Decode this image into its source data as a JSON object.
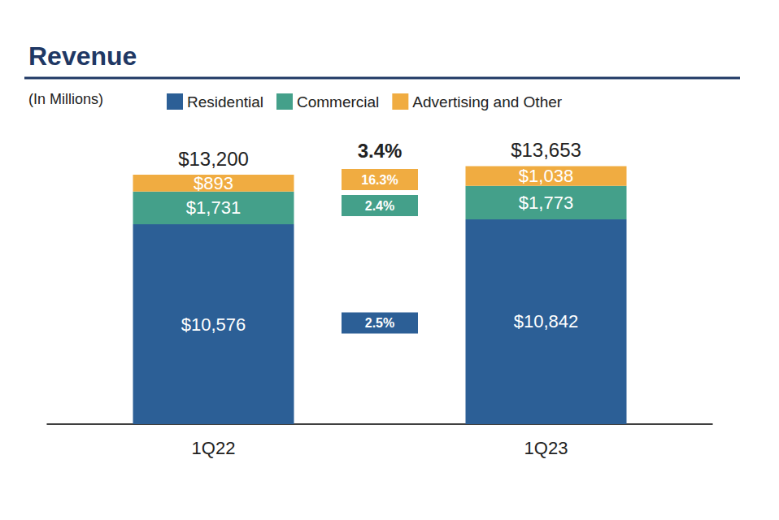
{
  "chart_data": {
    "type": "bar",
    "title": "Revenue",
    "subtitle": "(In Millions)",
    "categories": [
      "1Q22",
      "1Q23"
    ],
    "stacked": true,
    "data_labels": true,
    "tick_labels": "x",
    "legend": "top",
    "ylim": [
      0,
      16000
    ],
    "series": [
      {
        "name": "Residential",
        "color": "#2c5f96",
        "values": [
          10576,
          10842
        ],
        "value_labels": [
          "$10,576",
          "$10,842"
        ],
        "growth": 2.5,
        "growth_label": "2.5%"
      },
      {
        "name": "Commercial",
        "color": "#44a08a",
        "values": [
          1731,
          1773
        ],
        "value_labels": [
          "$1,731",
          "$1,773"
        ],
        "growth": 2.4,
        "growth_label": "2.4%"
      },
      {
        "name": "Advertising and Other",
        "color": "#f0ac41",
        "values": [
          893,
          1038
        ],
        "value_labels": [
          "$893",
          "$1,038"
        ],
        "growth": 16.3,
        "growth_label": "16.3%"
      }
    ],
    "totals": [
      13200,
      13653
    ],
    "total_labels": [
      "$13,200",
      "$13,653"
    ],
    "total_growth": 3.4,
    "total_growth_label": "3.4%"
  }
}
